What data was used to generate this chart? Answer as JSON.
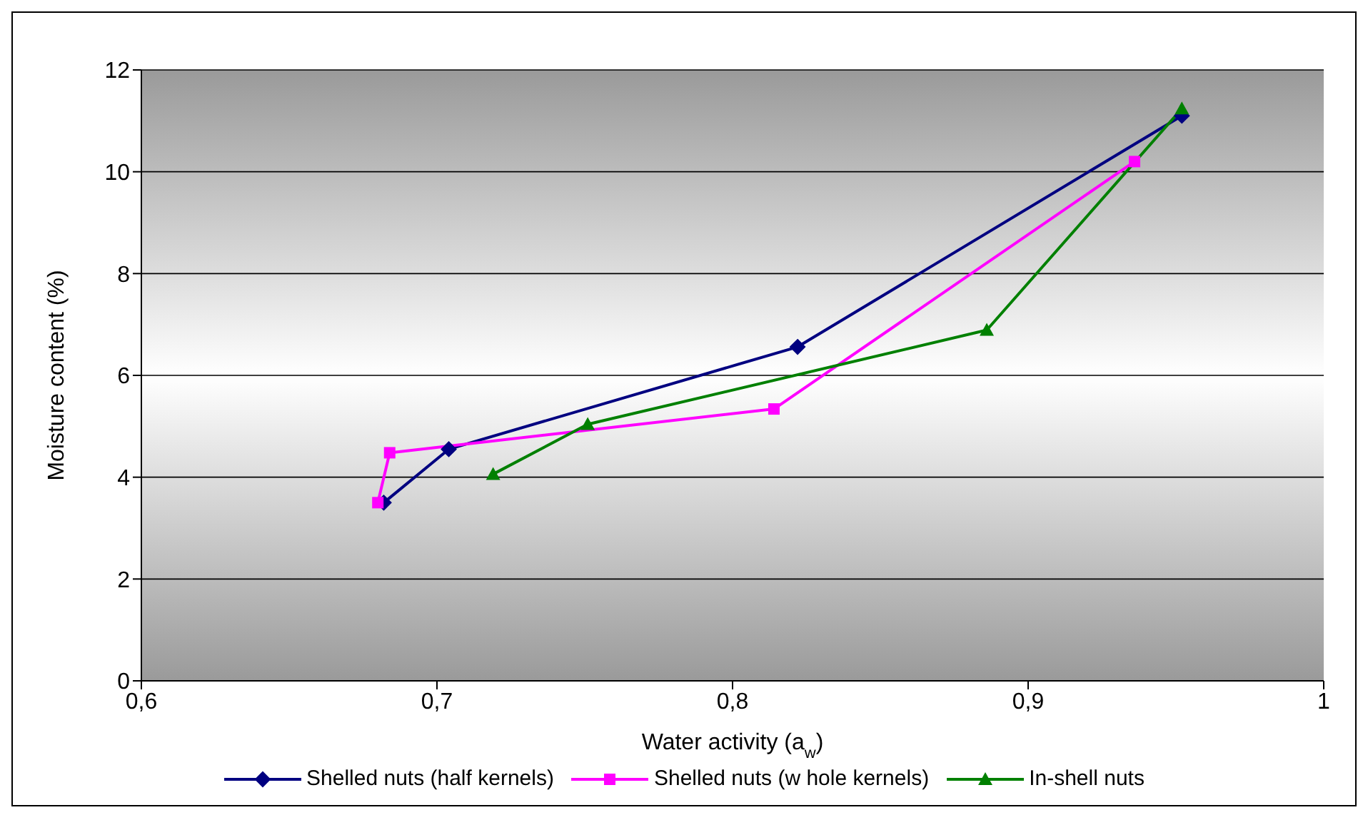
{
  "chart_data": {
    "type": "line",
    "xlabel": "Water activity (a$_{w}$)",
    "ylabel": "Moisture content (%)",
    "xlim": [
      0.6,
      1
    ],
    "xticks": [
      {
        "value": 0.6,
        "label": "0,6"
      },
      {
        "value": 0.7,
        "label": "0,7"
      },
      {
        "value": 0.8,
        "label": "0,8"
      },
      {
        "value": 0.9,
        "label": "0,9"
      },
      {
        "value": 1,
        "label": "1"
      }
    ],
    "ylim": [
      0,
      12
    ],
    "yticks": [
      0,
      2,
      4,
      6,
      8,
      10,
      12
    ],
    "grid": "y",
    "legend": "bottom",
    "series": [
      {
        "name": "Shelled nuts (half kernels)",
        "color": "#000080",
        "marker": "diamond",
        "x": [
          0.682,
          0.704,
          0.822,
          0.952
        ],
        "values": [
          3.5,
          4.55,
          6.56,
          11.1
        ]
      },
      {
        "name": "Shelled nuts (w hole kernels)",
        "color": "#ff00ff",
        "marker": "square",
        "x": [
          0.68,
          0.684,
          0.814,
          0.936
        ],
        "values": [
          3.5,
          4.48,
          5.34,
          10.2
        ]
      },
      {
        "name": "In-shell nuts",
        "color": "#008000",
        "marker": "triangle",
        "x": [
          0.719,
          0.751,
          0.886,
          0.952
        ],
        "values": [
          4.06,
          5.04,
          6.89,
          11.24
        ]
      }
    ]
  }
}
